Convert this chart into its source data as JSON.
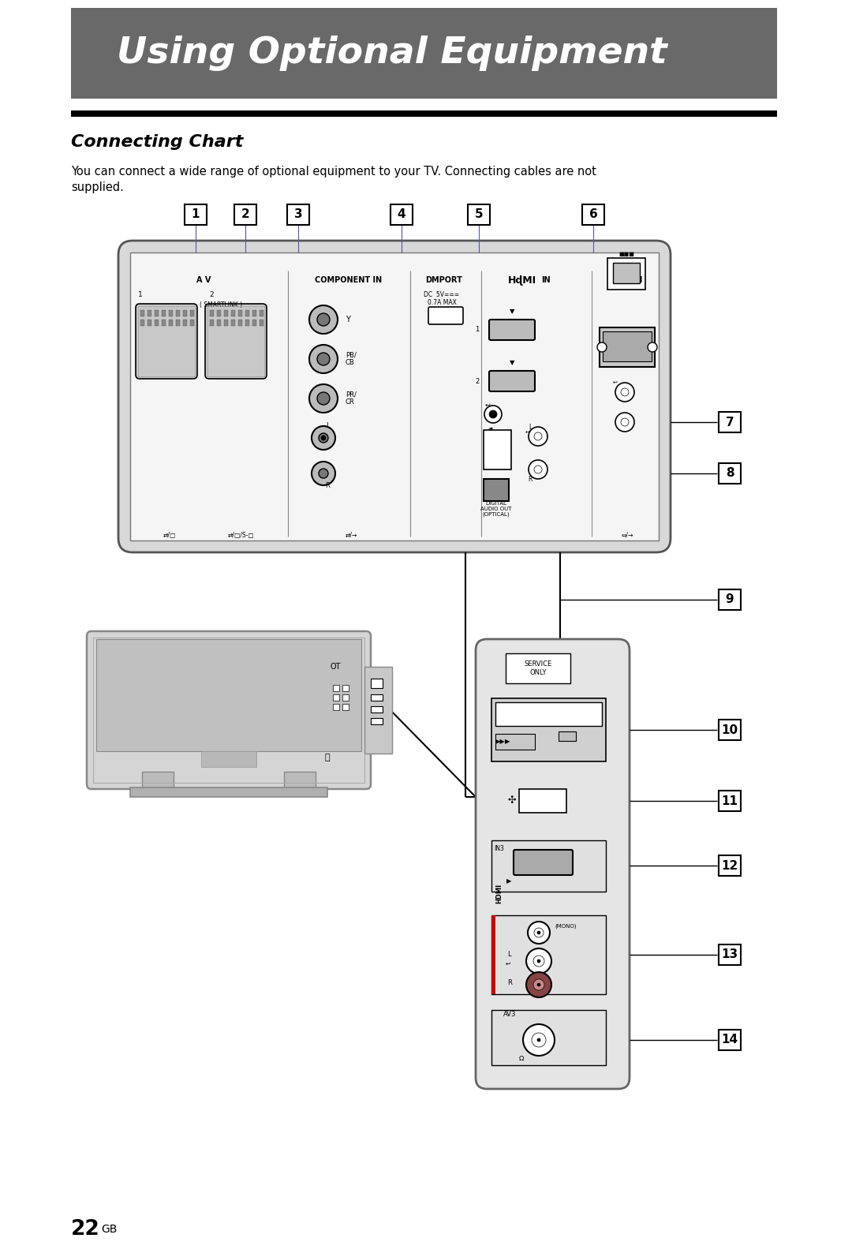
{
  "title": "Using Optional Equipment",
  "title_bg": "#696969",
  "title_fg": "#ffffff",
  "section_title": "Connecting Chart",
  "body1": "You can connect a wide range of optional equipment to your TV. Connecting cables are not",
  "body2": "supplied.",
  "page_num": "22",
  "page_sfx": "GB",
  "bg": "#ffffff",
  "panel_outer_bg": "#d8d8d8",
  "panel_inner_bg": "#f5f5f5",
  "scart_bg": "#c8c8c8",
  "rca_outer": "#c8c8c8",
  "rca_inner": "#888888",
  "hdmi_port_bg": "#aaaaaa",
  "vga_bg": "#c8c8c8",
  "rj45_bg": "#c0c0c0",
  "side_panel_bg": "#e8e8e8",
  "tv_body_bg": "#d0d0d0",
  "tv_screen_bg": "#c0c0c0",
  "connector_line_color": "#888888"
}
